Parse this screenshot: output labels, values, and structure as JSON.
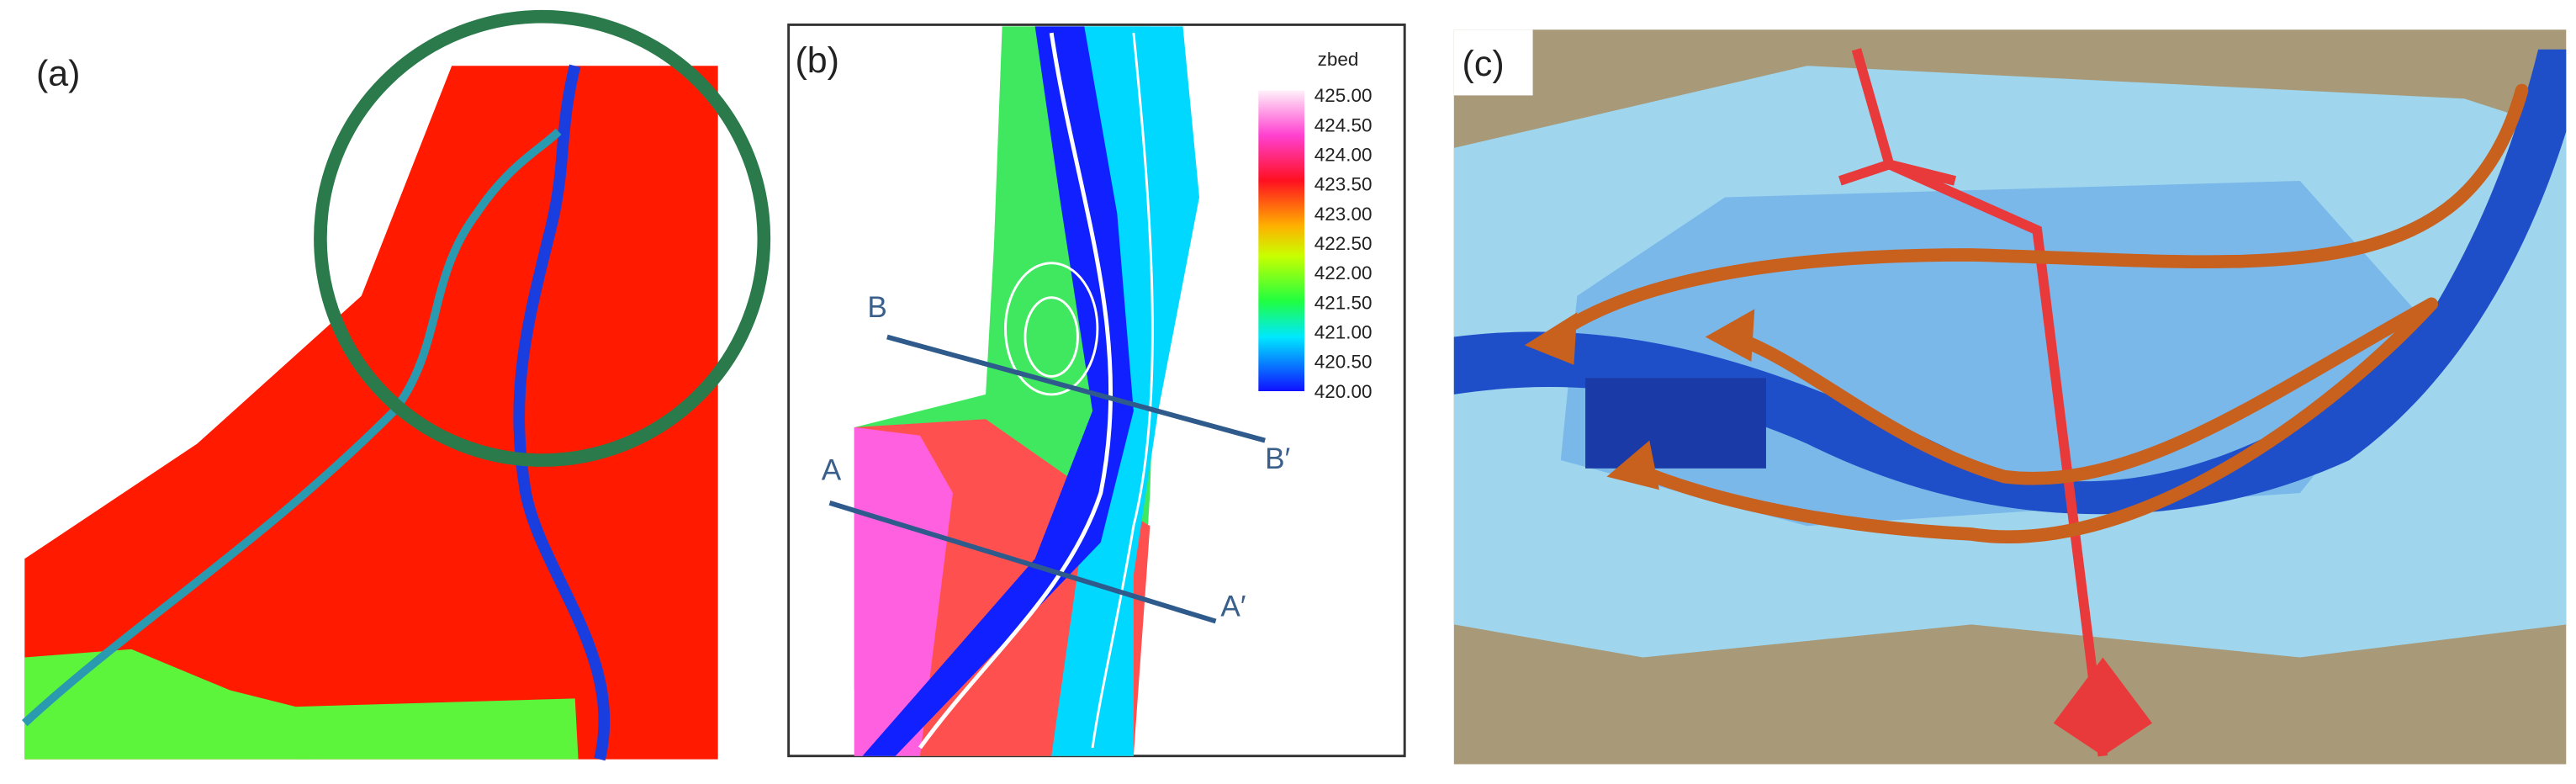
{
  "panels": [
    {
      "label": "(a)"
    },
    {
      "label": "(b)",
      "legend": {
        "title": "zbed",
        "ticks": [
          "425.00",
          "424.50",
          "424.00",
          "423.50",
          "423.00",
          "422.50",
          "422.00",
          "421.50",
          "421.00",
          "420.50",
          "420.00"
        ]
      },
      "sections": [
        {
          "start": "B",
          "end": "B′"
        },
        {
          "start": "A",
          "end": "A′"
        }
      ]
    },
    {
      "label": "(c)"
    }
  ]
}
